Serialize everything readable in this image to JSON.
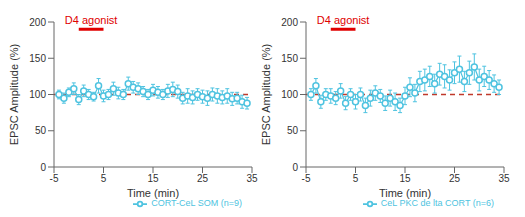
{
  "chart_data": [
    {
      "type": "line",
      "x_label": "Time (min)",
      "y_label": "EPSC Amplitude (%)",
      "xlim": [
        -5,
        35
      ],
      "xticks": [
        -5,
        5,
        15,
        25,
        35
      ],
      "ylim": [
        0,
        200
      ],
      "yticks": [
        0,
        50,
        100,
        150,
        200
      ],
      "grid": false,
      "legend": "bottom",
      "annotations": [
        {
          "text": "D4 agonist",
          "x": [
            0,
            5
          ],
          "y": 190,
          "color": "#e00000"
        }
      ],
      "hline": {
        "y": 100,
        "color": "#c0392b",
        "line_style": "dashed"
      },
      "x": [
        -4,
        -3,
        -2,
        -1,
        0,
        1,
        2,
        3,
        4,
        5,
        6,
        7,
        8,
        9,
        10,
        11,
        12,
        13,
        14,
        15,
        16,
        17,
        18,
        19,
        20,
        21,
        22,
        23,
        24,
        25,
        26,
        27,
        28,
        29,
        30,
        31,
        32,
        33,
        34
      ],
      "series": [
        {
          "name": "CORT-CeL SOM (n=9)",
          "color": "#4ec3e0",
          "marker": "circle",
          "values": [
            100,
            95,
            103,
            108,
            93,
            105,
            100,
            97,
            112,
            98,
            100,
            108,
            102,
            100,
            115,
            110,
            108,
            104,
            100,
            106,
            103,
            100,
            105,
            107,
            104,
            95,
            98,
            96,
            100,
            97,
            95,
            100,
            98,
            96,
            98,
            94,
            95,
            90,
            88
          ],
          "errors": [
            6,
            7,
            6,
            8,
            7,
            8,
            7,
            6,
            10,
            8,
            7,
            9,
            8,
            7,
            9,
            8,
            8,
            7,
            7,
            8,
            8,
            7,
            9,
            10,
            9,
            8,
            10,
            9,
            8,
            9,
            10,
            9,
            10,
            9,
            10,
            9,
            8,
            9,
            8
          ]
        }
      ]
    },
    {
      "type": "line",
      "x_label": "Time (min)",
      "y_label": "EPSC Amplitude (%)",
      "xlim": [
        -5,
        35
      ],
      "xticks": [
        -5,
        5,
        15,
        25,
        35
      ],
      "ylim": [
        0,
        200
      ],
      "yticks": [
        0,
        50,
        100,
        150,
        200
      ],
      "grid": false,
      "legend": "bottom",
      "annotations": [
        {
          "text": "D4 agonist",
          "x": [
            0,
            5
          ],
          "y": 190,
          "color": "#e00000"
        }
      ],
      "hline": {
        "y": 100,
        "color": "#c0392b",
        "line_style": "dashed"
      },
      "x": [
        -4,
        -3,
        -2,
        -1,
        0,
        1,
        2,
        3,
        4,
        5,
        6,
        7,
        8,
        9,
        10,
        11,
        12,
        13,
        14,
        15,
        16,
        17,
        18,
        19,
        20,
        21,
        22,
        23,
        24,
        25,
        26,
        27,
        28,
        29,
        30,
        31,
        32,
        33,
        34
      ],
      "series": [
        {
          "name": "CeL PKC de lta CORT (n=6)",
          "color": "#4ec3e0",
          "marker": "circle",
          "values": [
            100,
            112,
            90,
            100,
            98,
            95,
            105,
            88,
            100,
            90,
            100,
            85,
            95,
            102,
            98,
            88,
            95,
            90,
            85,
            98,
            110,
            102,
            118,
            120,
            125,
            115,
            128,
            125,
            120,
            130,
            135,
            118,
            130,
            138,
            120,
            125,
            120,
            115,
            110
          ],
          "errors": [
            8,
            10,
            9,
            8,
            10,
            9,
            10,
            9,
            8,
            10,
            9,
            10,
            11,
            10,
            9,
            10,
            11,
            12,
            10,
            12,
            13,
            12,
            14,
            15,
            14,
            13,
            15,
            16,
            14,
            15,
            18,
            14,
            16,
            18,
            15,
            14,
            13,
            12,
            10
          ]
        }
      ]
    }
  ]
}
